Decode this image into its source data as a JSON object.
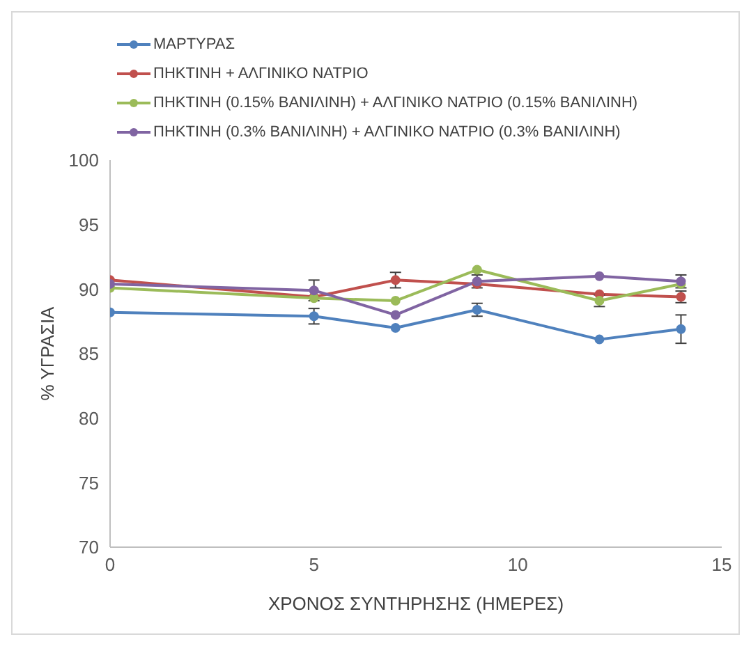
{
  "chart_data": {
    "type": "line",
    "xlabel": "ΧΡΟΝΟΣ ΣΥΝΤΗΡΗΣΗΣ (ΗΜΕΡΕΣ)",
    "ylabel": "% ΥΓΡΑΣΙΑ",
    "x": [
      0,
      5,
      7,
      9,
      12,
      14
    ],
    "series": [
      {
        "name": "ΜΑΡΤΥΡΑΣ",
        "color": "#4f81bd",
        "values": [
          88.2,
          87.9,
          87.0,
          88.4,
          86.1,
          86.9
        ],
        "errors": [
          null,
          0.6,
          null,
          0.5,
          null,
          1.1
        ]
      },
      {
        "name": "ΠΗΚΤΙΝΗ + ΑΛΓΙΝΙΚΟ ΝΑΤΡΙΟ",
        "color": "#c0504d",
        "values": [
          90.7,
          89.4,
          90.7,
          90.4,
          89.6,
          89.4
        ],
        "errors": [
          null,
          null,
          0.6,
          null,
          null,
          0.45
        ]
      },
      {
        "name": "ΠΗΚΤΙΝΗ (0.15% ΒΑΝΙΛΙΝΗ) + ΑΛΓΙΝΙΚΟ ΝΑΤΡΙΟ (0.15% ΒΑΝΙΛΙΝΗ)",
        "color": "#9bbb59",
        "values": [
          90.1,
          89.3,
          89.1,
          91.5,
          89.1,
          90.4
        ],
        "errors": [
          null,
          null,
          null,
          null,
          0.45,
          null
        ]
      },
      {
        "name": "ΠΗΚΤΙΝΗ (0.3% ΒΑΝΙΛΙΝΗ) + ΑΛΓΙΝΙΚΟ ΝΑΤΡΙΟ (0.3% ΒΑΝΙΛΙΝΗ)",
        "color": "#8064a2",
        "values": [
          90.4,
          89.9,
          88.0,
          90.6,
          91.0,
          90.6
        ],
        "errors": [
          null,
          0.8,
          null,
          0.5,
          null,
          0.5
        ]
      }
    ],
    "xlim": [
      0,
      15
    ],
    "xticks": [
      0,
      5,
      10,
      15
    ],
    "ylim": [
      70,
      100
    ],
    "yticks": [
      70,
      75,
      80,
      85,
      90,
      95,
      100
    ],
    "grid": false,
    "legend": "top",
    "marker": "circle",
    "line_style": "solid"
  }
}
